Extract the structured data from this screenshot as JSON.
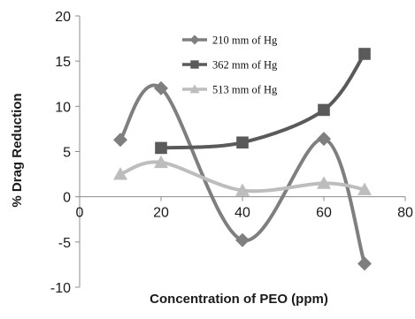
{
  "chart_data": {
    "type": "line",
    "title": "",
    "xlabel": "Concentration of PEO (ppm)",
    "ylabel": "% Drag Reduction",
    "xlim": [
      0,
      80
    ],
    "ylim": [
      -10,
      20
    ],
    "x_ticks": [
      0,
      20,
      40,
      60,
      80
    ],
    "y_ticks": [
      -10,
      -5,
      0,
      5,
      10,
      15,
      20
    ],
    "x_tick_labels": [
      "0",
      "20",
      "40",
      "60",
      "80"
    ],
    "y_tick_labels": [
      "-10",
      "-5",
      "0",
      "5",
      "10",
      "15",
      "20"
    ],
    "grid": false,
    "smooth": true,
    "legend_position": "top-right",
    "series": [
      {
        "name": "210 mm of Hg",
        "marker": "diamond",
        "color": "#7f7f7f",
        "x": [
          10,
          20,
          40,
          60,
          70
        ],
        "y": [
          6.3,
          12.0,
          -4.8,
          6.4,
          -7.4
        ]
      },
      {
        "name": "362 mm of Hg",
        "marker": "square",
        "color": "#5a5a5a",
        "x": [
          20,
          40,
          60,
          70
        ],
        "y": [
          5.4,
          6.0,
          9.6,
          15.8
        ]
      },
      {
        "name": "513 mm of Hg",
        "marker": "triangle",
        "color": "#bdbdbd",
        "x": [
          10,
          20,
          40,
          60,
          70
        ],
        "y": [
          2.5,
          3.8,
          0.7,
          1.5,
          0.8
        ]
      }
    ]
  }
}
